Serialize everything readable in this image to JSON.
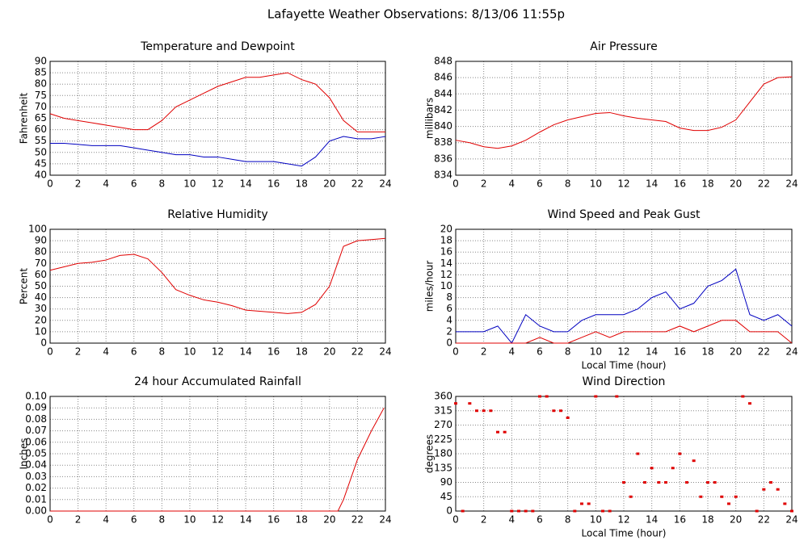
{
  "title": "Lafayette Weather Observations: 8/13/06 11:55p",
  "chart_data": [
    {
      "type": "line",
      "title": "Temperature and Dewpoint",
      "ylabel": "Fahrenheit",
      "x": [
        0,
        1,
        2,
        3,
        4,
        5,
        6,
        7,
        8,
        9,
        10,
        11,
        12,
        13,
        14,
        15,
        16,
        17,
        18,
        19,
        20,
        21,
        22,
        23,
        24
      ],
      "series": [
        {
          "color": "#e00000",
          "values": [
            67,
            65,
            64,
            63,
            62,
            61,
            60,
            60,
            64,
            70,
            73,
            76,
            79,
            81,
            83,
            83,
            84,
            85,
            82,
            80,
            74,
            64,
            59,
            59,
            59
          ]
        },
        {
          "color": "#0000c0",
          "values": [
            54,
            54,
            53.5,
            53,
            53,
            53,
            52,
            51,
            50,
            49,
            49,
            48,
            48,
            47,
            46,
            46,
            46,
            45,
            44,
            48,
            55,
            57,
            56,
            56,
            57
          ]
        }
      ],
      "xlim": [
        0,
        24
      ],
      "ylim": [
        40,
        90
      ],
      "xticks": [
        0,
        2,
        4,
        6,
        8,
        10,
        12,
        14,
        16,
        18,
        20,
        22,
        24
      ],
      "yticks": [
        40,
        45,
        50,
        55,
        60,
        65,
        70,
        75,
        80,
        85,
        90
      ],
      "grid": true
    },
    {
      "type": "line",
      "title": "Air Pressure",
      "ylabel": "millibars",
      "x": [
        0,
        1,
        2,
        3,
        4,
        5,
        6,
        7,
        8,
        9,
        10,
        11,
        12,
        13,
        14,
        15,
        16,
        17,
        18,
        19,
        20,
        21,
        22,
        23,
        24
      ],
      "series": [
        {
          "color": "#e00000",
          "values": [
            838.3,
            838,
            837.5,
            837.3,
            837.6,
            838.3,
            839.3,
            840.2,
            840.8,
            841.2,
            841.6,
            841.7,
            841.3,
            841,
            840.8,
            840.6,
            839.8,
            839.5,
            839.5,
            839.9,
            840.8,
            843,
            845.2,
            846,
            846.1
          ]
        }
      ],
      "xlim": [
        0,
        24
      ],
      "ylim": [
        834,
        848
      ],
      "xticks": [
        0,
        2,
        4,
        6,
        8,
        10,
        12,
        14,
        16,
        18,
        20,
        22,
        24
      ],
      "yticks": [
        834,
        836,
        838,
        840,
        842,
        844,
        846,
        848
      ],
      "grid": true
    },
    {
      "type": "line",
      "title": "Relative Humidity",
      "ylabel": "Percent",
      "x": [
        0,
        1,
        2,
        3,
        4,
        5,
        6,
        7,
        8,
        9,
        10,
        11,
        12,
        13,
        14,
        15,
        16,
        17,
        18,
        19,
        20,
        21,
        22,
        23,
        24
      ],
      "series": [
        {
          "color": "#e00000",
          "values": [
            64,
            67,
            70,
            71,
            73,
            77,
            78,
            74,
            62,
            47,
            42,
            38,
            36,
            33,
            29,
            28,
            27,
            26,
            27,
            34,
            50,
            85,
            90,
            91,
            92
          ]
        }
      ],
      "xlim": [
        0,
        24
      ],
      "ylim": [
        0,
        100
      ],
      "xticks": [
        0,
        2,
        4,
        6,
        8,
        10,
        12,
        14,
        16,
        18,
        20,
        22,
        24
      ],
      "yticks": [
        0,
        10,
        20,
        30,
        40,
        50,
        60,
        70,
        80,
        90,
        100
      ],
      "grid": true
    },
    {
      "type": "line",
      "title": "Wind Speed and Peak Gust",
      "ylabel": "miles/hour",
      "xlabel": "Local Time (hour)",
      "x": [
        0,
        1,
        2,
        3,
        4,
        5,
        6,
        7,
        8,
        9,
        10,
        11,
        12,
        13,
        14,
        15,
        16,
        17,
        18,
        19,
        20,
        21,
        22,
        23,
        24
      ],
      "series": [
        {
          "color": "#0000c0",
          "values": [
            2,
            2,
            2,
            3,
            0,
            5,
            3,
            2,
            2,
            4,
            5,
            5,
            5,
            6,
            8,
            9,
            6,
            7,
            10,
            11,
            13,
            5,
            4,
            5,
            3
          ]
        },
        {
          "color": "#e00000",
          "values": [
            0,
            0,
            0,
            0,
            0,
            0,
            1,
            0,
            0,
            1,
            2,
            1,
            2,
            2,
            2,
            2,
            3,
            2,
            3,
            4,
            4,
            2,
            2,
            2,
            0
          ]
        }
      ],
      "xlim": [
        0,
        24
      ],
      "ylim": [
        0,
        20
      ],
      "xticks": [
        0,
        2,
        4,
        6,
        8,
        10,
        12,
        14,
        16,
        18,
        20,
        22,
        24
      ],
      "yticks": [
        0,
        2,
        4,
        6,
        8,
        10,
        12,
        14,
        16,
        18,
        20
      ],
      "grid": true
    },
    {
      "type": "line",
      "title": "24 hour Accumulated Rainfall",
      "ylabel": "Inches",
      "x": [
        0,
        20.6,
        21,
        22,
        23,
        23.9
      ],
      "series": [
        {
          "color": "#e00000",
          "values": [
            0,
            0,
            0.01,
            0.045,
            0.07,
            0.09
          ]
        }
      ],
      "xlim": [
        0,
        24
      ],
      "ylim": [
        0,
        0.1
      ],
      "xticks": [
        0,
        2,
        4,
        6,
        8,
        10,
        12,
        14,
        16,
        18,
        20,
        22,
        24
      ],
      "yticks": [
        {
          "value": 0,
          "label": "0.00"
        },
        {
          "value": 0.01,
          "label": "0.01"
        },
        {
          "value": 0.02,
          "label": "0.02"
        },
        {
          "value": 0.03,
          "label": "0.03"
        },
        {
          "value": 0.04,
          "label": "0.04"
        },
        {
          "value": 0.05,
          "label": "0.05"
        },
        {
          "value": 0.06,
          "label": "0.06"
        },
        {
          "value": 0.07,
          "label": "0.07"
        },
        {
          "value": 0.08,
          "label": "0.08"
        },
        {
          "value": 0.09,
          "label": "0.09"
        },
        {
          "value": 0.1,
          "label": "0.10"
        }
      ],
      "grid": true
    },
    {
      "type": "scatter",
      "title": "Wind Direction",
      "ylabel": "degrees",
      "xlabel": "Local Time (hour)",
      "x": [
        0,
        0.5,
        1,
        1.5,
        2,
        2.5,
        3,
        3.5,
        4,
        4.5,
        5,
        5.5,
        6,
        6.5,
        7,
        7.5,
        8,
        8.5,
        9,
        9.5,
        10,
        10.5,
        11,
        11.5,
        12,
        12.5,
        13,
        13.5,
        14,
        14.5,
        15,
        15.5,
        16,
        16.5,
        17,
        17.5,
        18,
        18.5,
        19,
        19.5,
        20,
        20.5,
        21,
        21.5,
        22,
        22.5,
        23,
        23.5,
        24
      ],
      "series": [
        {
          "color": "#e00000",
          "values": [
            338,
            0,
            338,
            315,
            315,
            315,
            248,
            248,
            0,
            0,
            0,
            0,
            360,
            360,
            315,
            315,
            293,
            0,
            23,
            23,
            360,
            0,
            0,
            360,
            90,
            45,
            180,
            90,
            135,
            90,
            90,
            135,
            180,
            90,
            158,
            45,
            90,
            90,
            45,
            23,
            45,
            360,
            338,
            0,
            68,
            90,
            68,
            23,
            0
          ]
        }
      ],
      "xlim": [
        0,
        24
      ],
      "ylim": [
        0,
        360
      ],
      "xticks": [
        0,
        2,
        4,
        6,
        8,
        10,
        12,
        14,
        16,
        18,
        20,
        22,
        24
      ],
      "yticks": [
        0,
        45,
        90,
        135,
        180,
        225,
        270,
        315,
        360
      ],
      "grid": true
    }
  ]
}
